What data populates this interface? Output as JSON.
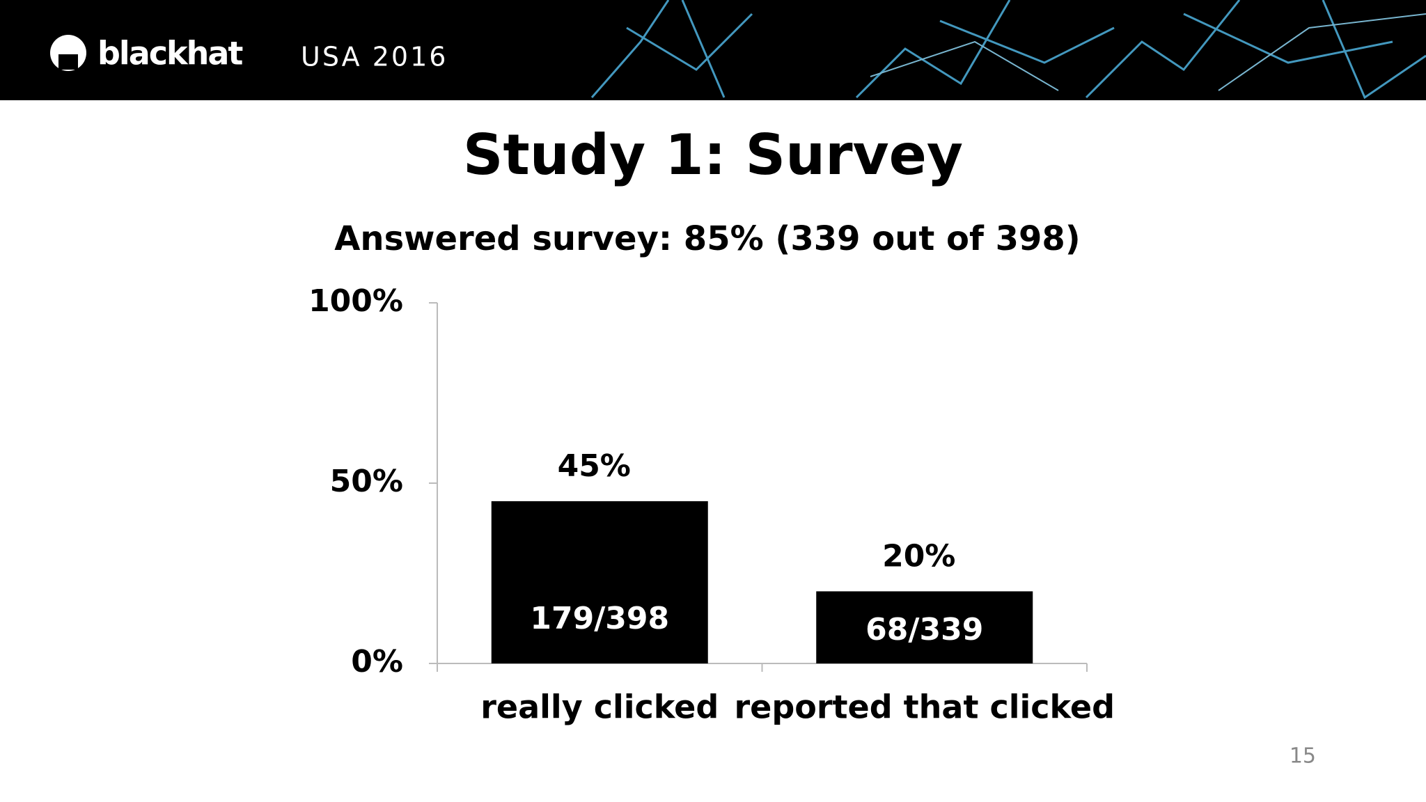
{
  "header": {
    "brand": "blackhat",
    "event": "USA 2016"
  },
  "slide_number": 15,
  "chart_data": {
    "type": "bar",
    "title": "Study 1: Survey",
    "subtitle": "Answered survey: 85% (339 out of 398)",
    "categories": [
      "really clicked",
      "reported that clicked"
    ],
    "values": [
      45,
      20
    ],
    "value_labels": [
      "45%",
      "20%"
    ],
    "annotations": [
      "179/398",
      "68/339"
    ],
    "color": "#000000",
    "ylim": [
      0,
      100
    ],
    "yticks": [
      {
        "value": 0,
        "label": "0%"
      },
      {
        "value": 50,
        "label": "50%"
      },
      {
        "value": 100,
        "label": "100%"
      }
    ],
    "grid": false
  }
}
